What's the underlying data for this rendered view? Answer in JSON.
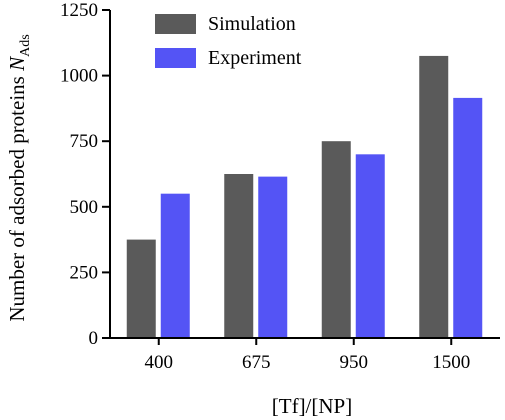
{
  "chart_data": {
    "type": "bar",
    "categories": [
      "400",
      "675",
      "950",
      "1500"
    ],
    "series": [
      {
        "name": "Simulation",
        "values": [
          375,
          625,
          750,
          1075
        ],
        "color": "#5a5a5a"
      },
      {
        "name": "Experiment",
        "values": [
          550,
          615,
          700,
          915
        ],
        "color": "#5454f5"
      }
    ],
    "xlabel": "[Tf]/[NP]",
    "ylabel_main": "Number of adsorbed proteins ",
    "ylabel_symbol": "N",
    "ylabel_subscript": "Ads",
    "ylim": [
      0,
      1250
    ],
    "yticks": [
      0,
      250,
      500,
      750,
      1000,
      1250
    ],
    "grid": false,
    "legend_position": "top-left"
  }
}
